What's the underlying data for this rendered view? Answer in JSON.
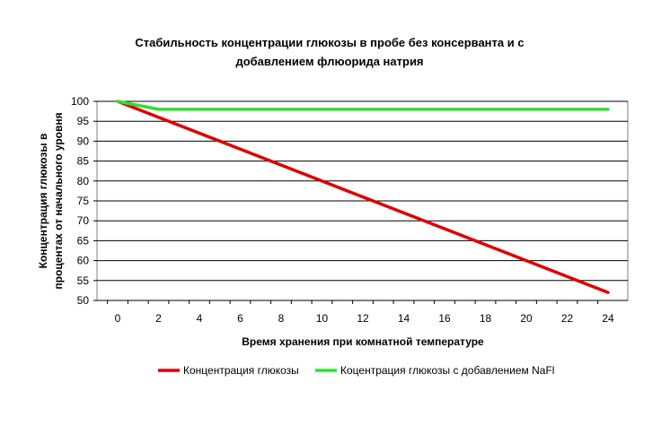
{
  "chart_data": {
    "type": "line",
    "title_line1": "Стабильность концентрации глюкозы в пробе без консерванта и с",
    "title_line2": "добавлением флюорида натрия",
    "xlabel": "Время хранения при комнатной температуре",
    "ylabel_line1": "Концентрация глюкозы в",
    "ylabel_line2": "процентах от начального уровня",
    "x_ticks": [
      0,
      2,
      4,
      6,
      8,
      10,
      12,
      14,
      16,
      18,
      20,
      22,
      24
    ],
    "y_ticks": [
      50,
      55,
      60,
      65,
      70,
      75,
      80,
      85,
      90,
      95,
      100
    ],
    "xlim": [
      0,
      24
    ],
    "ylim": [
      50,
      100
    ],
    "grid": "horizontal",
    "legend_position": "bottom",
    "series": [
      {
        "name": "Концентрация глюкозы",
        "color": "#dd0000",
        "x": [
          0,
          24
        ],
        "y": [
          100,
          52
        ]
      },
      {
        "name": "Коцентрация глюкозы с добавлением NaFl",
        "color": "#33dd33",
        "x": [
          0,
          2,
          24
        ],
        "y": [
          100,
          98,
          98
        ]
      }
    ]
  }
}
